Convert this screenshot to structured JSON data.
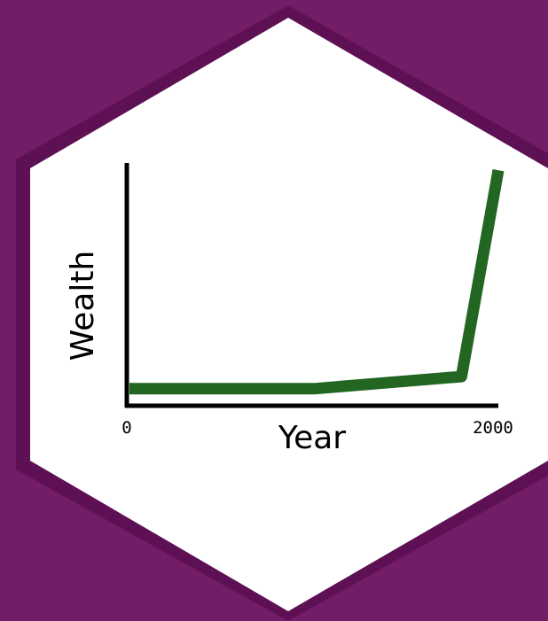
{
  "colors": {
    "background": "#731c68",
    "hexagon_border": "#5e1055",
    "hexagon_fill": "#ffffff",
    "line": "#226622",
    "axis": "#000000"
  },
  "chart_data": {
    "type": "line",
    "title": "",
    "xlabel": "Year",
    "ylabel": "Wealth",
    "xlim": [
      0,
      2000
    ],
    "ylim": [
      0,
      100
    ],
    "x_tick_labels": [
      "0",
      "2000"
    ],
    "grid": false,
    "legend": "none",
    "series": [
      {
        "x": [
          0,
          1000,
          1800,
          2000
        ],
        "y": [
          7,
          7,
          12,
          97
        ]
      }
    ]
  }
}
